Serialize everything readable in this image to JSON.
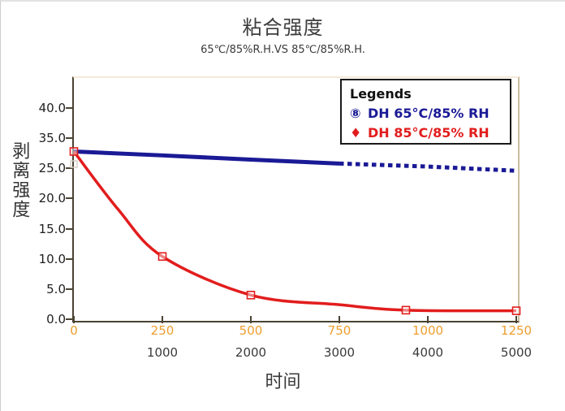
{
  "chart_data": {
    "type": "line",
    "title": "粘合强度",
    "subtitle": "65℃/85%R.H.VS 85℃/85%R.H.",
    "xlabel": "时间",
    "ylabel": "剥离强度",
    "x_axis": {
      "range": [
        0,
        1250
      ],
      "primary_ticks": [
        0,
        250,
        500,
        750,
        1000,
        1250
      ],
      "primary_color": "#ee9e2e",
      "secondary_ticks": [
        1000,
        2000,
        3000,
        4000,
        5000
      ],
      "secondary_color": "#3a3a3a"
    },
    "y_axis": {
      "tick_labels": [
        "0.0",
        "5.0",
        "10.0",
        "15.0",
        "20.0",
        "25.0",
        "35.0",
        "40.0"
      ],
      "tick_values": [
        0,
        5,
        10,
        15,
        20,
        25,
        35,
        40
      ]
    },
    "series": [
      {
        "name": "DH 65°C/85% RH",
        "color": "#1a1a96",
        "marker": "⑧",
        "style": "solid_then_dashed",
        "dash_from_x": 750,
        "points": [
          [
            0,
            30.6
          ],
          [
            250,
            29.3
          ],
          [
            500,
            27.9
          ],
          [
            750,
            26.6
          ],
          [
            1000,
            25.6
          ],
          [
            1250,
            24.6
          ]
        ]
      },
      {
        "name": "DH 85°C/85% RH",
        "color": "#e21d1d",
        "marker": "♦",
        "style": "solid",
        "points": [
          [
            0,
            30.6
          ],
          [
            125,
            18.2
          ],
          [
            250,
            10.4
          ],
          [
            500,
            4.0
          ],
          [
            750,
            2.4
          ],
          [
            938,
            1.5
          ],
          [
            1250,
            1.4
          ]
        ],
        "marker_points": [
          [
            0,
            30.6
          ],
          [
            250,
            10.4
          ],
          [
            500,
            4.0
          ],
          [
            938,
            1.5
          ],
          [
            1250,
            1.4
          ]
        ]
      }
    ],
    "legend": {
      "title": "Legends",
      "position": "top-right"
    },
    "ghost_marker": {
      "x": 0,
      "y": 26.4,
      "color": "#d6cfc2"
    },
    "grid": "off"
  },
  "colors": {
    "axis": "#4a4333",
    "plot_top_border": "#f5ead8",
    "plot_right_border": "#c9bda0",
    "title_text": "#3d3d3d",
    "legend_border": "#1a1a1a"
  }
}
